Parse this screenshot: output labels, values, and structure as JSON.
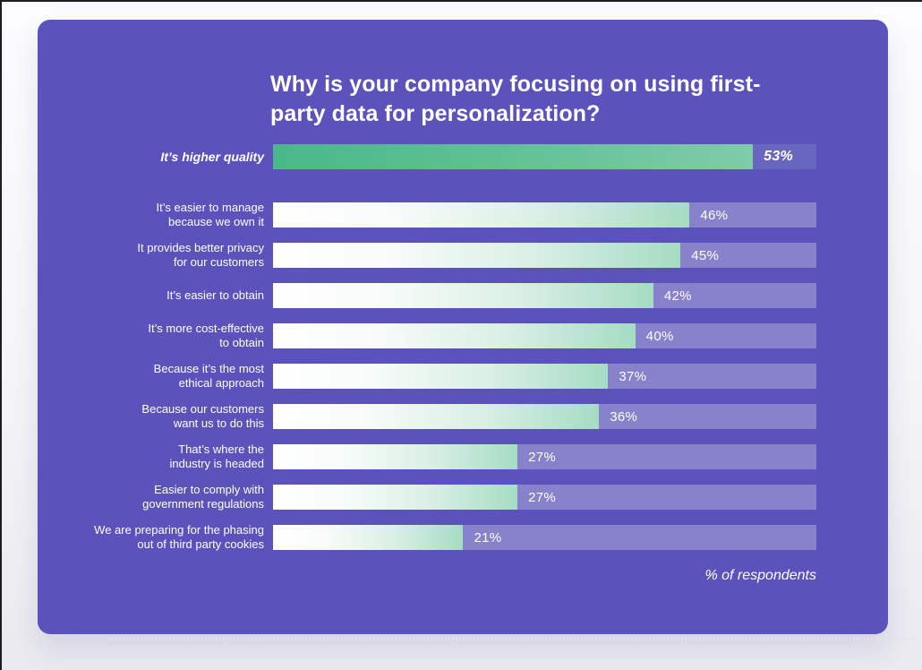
{
  "chart_data": {
    "type": "bar",
    "orientation": "horizontal",
    "title": "Why is your company focusing on using first-party data for personalization?",
    "footnote": "% of respondents",
    "unit": "%",
    "xlim": [
      0,
      60
    ],
    "grid": false,
    "legend": false,
    "highlight_index": 0,
    "categories": [
      "It’s higher quality",
      "It’s easier to manage\nbecause we own it",
      "It provides better privacy\nfor our customers",
      "It’s easier to obtain",
      "It’s more cost-effective\nto obtain",
      "Because it’s the most\nethical approach",
      "Because our customers\nwant us to do this",
      "That’s where the\nindustry is headed",
      "Easier to comply with\ngovernment regulations",
      "We are preparing for the phasing\nout of third party cookies"
    ],
    "values": [
      53,
      46,
      45,
      42,
      40,
      37,
      36,
      27,
      27,
      21
    ],
    "value_labels": [
      "53%",
      "46%",
      "45%",
      "42%",
      "40%",
      "37%",
      "36%",
      "27%",
      "27%",
      "21%"
    ]
  },
  "colors": {
    "card_background": "#5b53bb",
    "bar_track": "#8882cd",
    "highlight_track": "#6866c1",
    "bar_gradient_start": "#ffffff",
    "bar_gradient_end": "#a5dcc4",
    "highlight_gradient_start": "#49b989",
    "highlight_gradient_end": "#7fcca8",
    "text": "#ffffff"
  }
}
